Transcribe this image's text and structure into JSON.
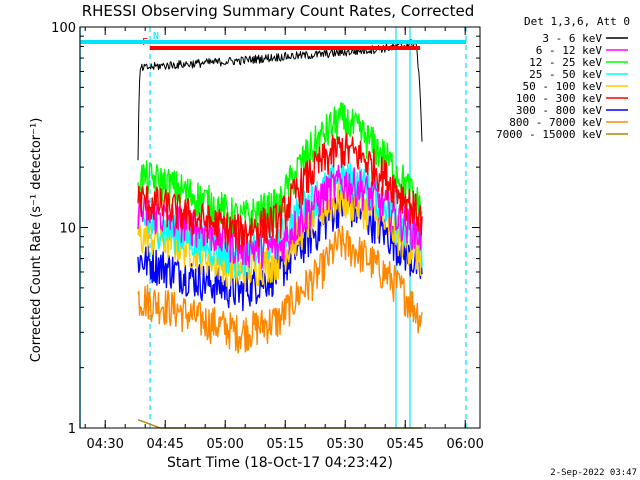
{
  "chart_data": {
    "type": "line",
    "title": "RHESSI Observing Summary Count Rates, Corrected",
    "xlabel": "Start Time (18-Oct-17 04:23:42)",
    "ylabel": "Corrected Count Rate (s⁻¹ detector⁻¹)",
    "x_ticks": [
      "04:30",
      "04:45",
      "05:00",
      "05:15",
      "05:30",
      "05:45",
      "06:00"
    ],
    "x_tick_minutes": [
      6.3,
      21.3,
      36.3,
      51.3,
      66.3,
      81.3,
      96.3
    ],
    "xlim_minutes": [
      0,
      100
    ],
    "y_scale": "log",
    "ylim": [
      1,
      100
    ],
    "y_ticks": [
      "1",
      "10",
      "100"
    ],
    "y_tick_values": [
      1,
      10,
      100
    ],
    "legend_title": "Det 1,3,6, Att 0",
    "legend_position": "right",
    "data_start_minute": 14.5,
    "data_end_minute": 85.5,
    "series": [
      {
        "name": "3 - 6 keV",
        "color": "#000000",
        "x": [
          14.5,
          15,
          20,
          30,
          40,
          50,
          60,
          70,
          80,
          84,
          85.5
        ],
        "y": [
          21,
          62,
          64,
          66,
          68,
          71,
          73,
          76,
          80,
          84,
          28
        ]
      },
      {
        "name": "6 - 12 keV",
        "color": "#ff00ff",
        "x": [
          14.5,
          20,
          30,
          40,
          50,
          60,
          65,
          70,
          80,
          85.5
        ],
        "y": [
          12,
          11.5,
          10,
          8,
          8,
          14,
          17,
          16,
          11,
          9
        ]
      },
      {
        "name": "12 - 25 keV",
        "color": "#00ff00",
        "x": [
          14.5,
          20,
          30,
          40,
          50,
          60,
          65,
          70,
          80,
          85.5
        ],
        "y": [
          18,
          17,
          14,
          11,
          13,
          28,
          35,
          30,
          18,
          12
        ]
      },
      {
        "name": "25 - 50 keV",
        "color": "#00ffff",
        "x": [
          14.5,
          20,
          30,
          40,
          50,
          60,
          65,
          70,
          80,
          85.5
        ],
        "y": [
          11,
          10,
          8.5,
          7,
          9,
          15,
          18,
          17,
          11,
          8
        ]
      },
      {
        "name": "50 - 100 keV",
        "color": "#ffcc00",
        "x": [
          14.5,
          20,
          30,
          40,
          50,
          60,
          65,
          70,
          80,
          85.5
        ],
        "y": [
          9,
          9,
          7.5,
          6,
          7,
          12,
          14,
          13,
          9,
          7
        ]
      },
      {
        "name": "100 - 300 keV",
        "color": "#ff0000",
        "x": [
          14.5,
          20,
          30,
          40,
          50,
          60,
          65,
          70,
          80,
          85.5
        ],
        "y": [
          14,
          13,
          11,
          9.5,
          11,
          21,
          25,
          23,
          15,
          11
        ]
      },
      {
        "name": "300 - 800 keV",
        "color": "#0000ff",
        "x": [
          14.5,
          20,
          30,
          40,
          50,
          60,
          65,
          70,
          80,
          85.5
        ],
        "y": [
          7,
          6.5,
          5.5,
          4.8,
          6,
          10,
          13,
          12,
          8,
          6
        ]
      },
      {
        "name": "800 - 7000 keV",
        "color": "#ff8800",
        "x": [
          14.5,
          20,
          30,
          40,
          50,
          60,
          65,
          70,
          80,
          85.5
        ],
        "y": [
          4.5,
          4.2,
          3.5,
          3,
          3.5,
          6,
          8.5,
          7.5,
          5,
          3.5
        ]
      },
      {
        "name": "7000 - 15000 keV",
        "color": "#aa8800",
        "x": [
          14.5,
          20,
          30,
          40,
          50,
          60,
          70,
          80,
          85.5
        ],
        "y": [
          1.1,
          1,
          1,
          1,
          1,
          1,
          1,
          1,
          1
        ]
      }
    ],
    "flags": [
      {
        "label": "F",
        "color": "#ff0000",
        "start_minute": 17.5,
        "end_minute": 85
      },
      {
        "label": "N",
        "color": "#00e5ff",
        "start_minute": 0,
        "end_minute": 96.5
      }
    ],
    "vertical_lines": [
      {
        "minute": 17.5,
        "color": "#00e5ff",
        "style": "dashed"
      },
      {
        "minute": 79.0,
        "color": "#00e5ff",
        "style": "solid"
      },
      {
        "minute": 82.5,
        "color": "#00e5ff",
        "style": "solid"
      },
      {
        "minute": 96.5,
        "color": "#00e5ff",
        "style": "dashed"
      }
    ],
    "timestamp": "2-Sep-2022 03:47"
  }
}
